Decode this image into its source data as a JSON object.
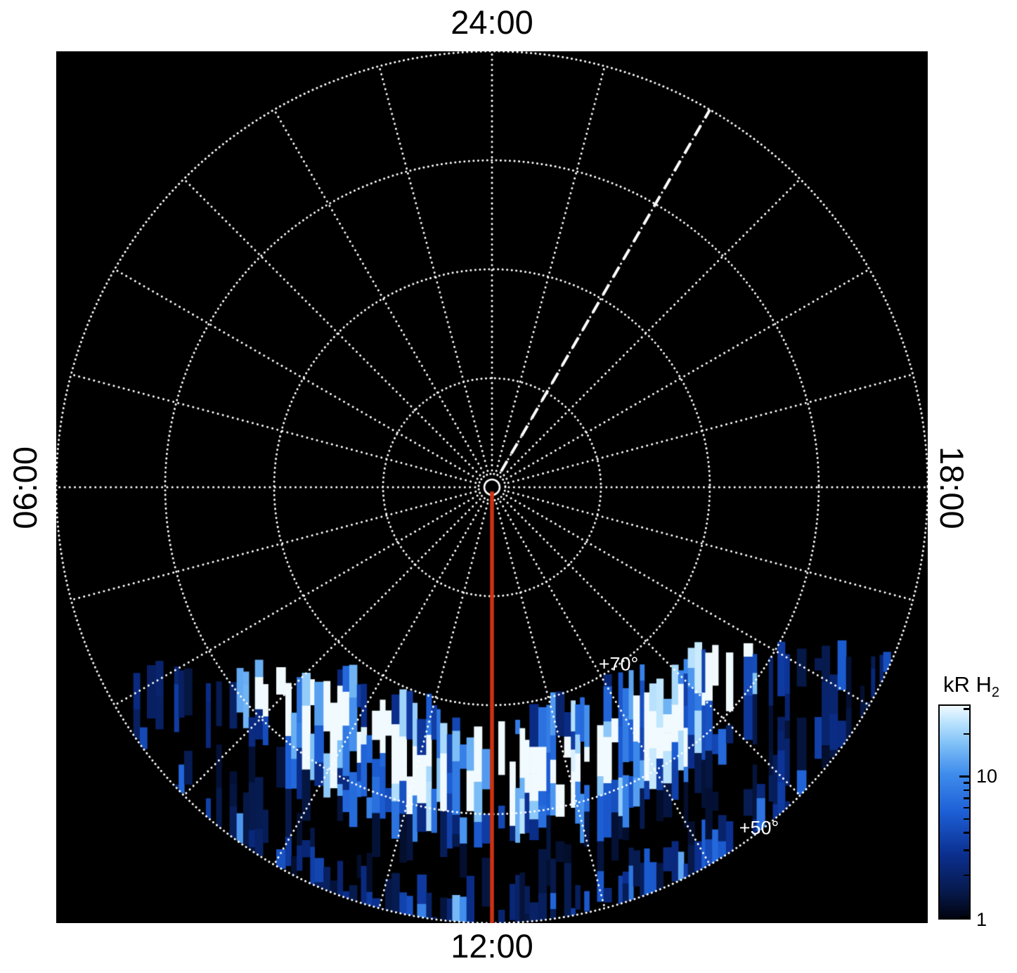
{
  "figure": {
    "background": "#ffffff",
    "plot_background": "#000000"
  },
  "chart_data": {
    "type": "heatmap",
    "projection": "polar-local-time",
    "hour_labels": {
      "top": "24:00",
      "right": "18:00",
      "bottom": "12:00",
      "left": "06:00"
    },
    "pole_latitude_deg": 90,
    "outer_latitude_deg": 50,
    "latitude_rings_deg": [
      80,
      70,
      60,
      50
    ],
    "ring_labels": [
      {
        "text": "+70°",
        "latitude_deg": 70
      },
      {
        "text": "+50°",
        "latitude_deg": 50
      }
    ],
    "radial_spokes_count": 24,
    "grid": {
      "color": "#ffffff",
      "style": "dotted"
    },
    "annotations": {
      "noon_meridian_line": {
        "local_time": 12,
        "color": "#cc3311",
        "style": "solid"
      },
      "dashed_line": {
        "local_time": 22,
        "color": "#ffffff",
        "style": "dashed"
      },
      "center_marker": {
        "color": "#ffffff"
      }
    },
    "colorbar": {
      "label_prefix": "kR H",
      "label_sub": "2",
      "scale": "log",
      "min": 1,
      "max": 31.6,
      "major_ticks": [
        {
          "value": 10,
          "label": "10"
        },
        {
          "value": 1,
          "label": "1"
        }
      ],
      "minor_ticks": [
        2,
        3,
        4,
        5,
        6,
        7,
        8,
        9,
        20,
        30
      ]
    },
    "emission": {
      "seed": 9,
      "colormap": [
        {
          "p": 0.0,
          "c": "#01030f"
        },
        {
          "p": 0.12,
          "c": "#06194a"
        },
        {
          "p": 0.3,
          "c": "#0b2f8f"
        },
        {
          "p": 0.5,
          "c": "#1d5fd6"
        },
        {
          "p": 0.68,
          "c": "#3f8cec"
        },
        {
          "p": 0.82,
          "c": "#7fc0f7"
        },
        {
          "p": 0.92,
          "c": "#b9e2fd"
        },
        {
          "p": 1.0,
          "c": "#f0faff"
        }
      ],
      "stripe_min_width": 5,
      "stripe_max_width": 13,
      "inner_radius_frac": 0.52,
      "inner_radius_growth": 0.25,
      "min_depth_frac": 0.4,
      "band_peak_frac": 0.66,
      "band_sigma_frac": 0.13,
      "dark_ring_frac": [
        0.8,
        0.93
      ],
      "speckle_radius_frac": 0.88
    }
  }
}
